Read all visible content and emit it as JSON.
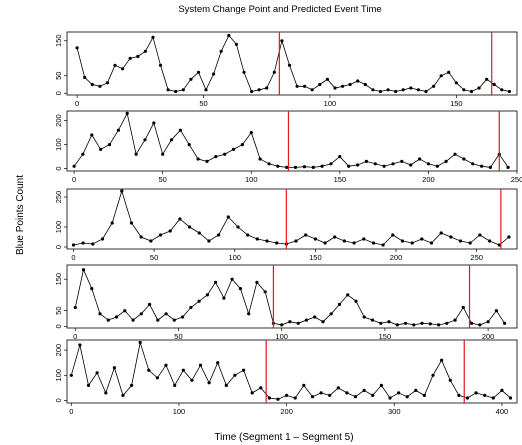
{
  "figure": {
    "title": "System Change Point and Predicted Event Time",
    "xlabel": "Time (Segment 1 – Segment 5)",
    "ylabel": "Blue Points Count"
  },
  "colors": {
    "points": "#000000",
    "line": "#000000",
    "changepoint": "#e31a1c",
    "frame": "#000000"
  },
  "chart_data": [
    {
      "type": "line",
      "segment": 1,
      "xlim": [
        -4,
        174
      ],
      "ylim": [
        -5,
        175
      ],
      "xticks": [
        0,
        50,
        100,
        150
      ],
      "yticks": [
        0,
        50,
        150
      ],
      "change_points": [
        80,
        164
      ],
      "series": [
        {
          "x": [
            0,
            3,
            6,
            9,
            12,
            15,
            18,
            21,
            24,
            27,
            30,
            33,
            36,
            39,
            42,
            45,
            48,
            51,
            54,
            57,
            60,
            63,
            66,
            69,
            72,
            75,
            78,
            81,
            84,
            87,
            90,
            93,
            96,
            99,
            102,
            105,
            108,
            111,
            114,
            117,
            120,
            123,
            126,
            129,
            132,
            135,
            138,
            141,
            144,
            147,
            150,
            153,
            156,
            159,
            162,
            165,
            168,
            171
          ],
          "y": [
            130,
            45,
            25,
            20,
            30,
            80,
            70,
            100,
            105,
            120,
            160,
            80,
            10,
            5,
            10,
            40,
            60,
            10,
            55,
            120,
            165,
            140,
            60,
            5,
            10,
            15,
            60,
            150,
            80,
            20,
            20,
            10,
            25,
            40,
            15,
            20,
            25,
            35,
            25,
            10,
            5,
            10,
            5,
            10,
            15,
            10,
            5,
            20,
            50,
            60,
            30,
            10,
            5,
            15,
            40,
            25,
            10,
            5
          ]
        }
      ]
    },
    {
      "type": "line",
      "segment": 2,
      "xlim": [
        -4,
        250
      ],
      "ylim": [
        -10,
        240
      ],
      "xticks": [
        0,
        50,
        100,
        150,
        200,
        250
      ],
      "yticks": [
        0,
        100,
        200
      ],
      "change_points": [
        121,
        240
      ],
      "series": [
        {
          "x": [
            0,
            5,
            10,
            15,
            20,
            25,
            30,
            35,
            40,
            45,
            50,
            55,
            60,
            65,
            70,
            75,
            80,
            85,
            90,
            95,
            100,
            105,
            110,
            115,
            120,
            125,
            130,
            135,
            140,
            145,
            150,
            155,
            160,
            165,
            170,
            175,
            180,
            185,
            190,
            195,
            200,
            205,
            210,
            215,
            220,
            225,
            230,
            235,
            240,
            245
          ],
          "y": [
            10,
            60,
            140,
            80,
            100,
            160,
            230,
            60,
            120,
            190,
            60,
            120,
            160,
            100,
            40,
            30,
            50,
            60,
            80,
            100,
            150,
            40,
            20,
            10,
            5,
            5,
            8,
            5,
            10,
            20,
            50,
            10,
            15,
            30,
            20,
            10,
            20,
            30,
            15,
            40,
            20,
            10,
            30,
            60,
            40,
            20,
            10,
            5,
            60,
            5
          ]
        }
      ]
    },
    {
      "type": "line",
      "segment": 3,
      "xlim": [
        -4,
        275
      ],
      "ylim": [
        -10,
        290
      ],
      "xticks": [
        0,
        50,
        100,
        150,
        200,
        250
      ],
      "yticks": [
        0,
        100,
        250
      ],
      "change_points": [
        132,
        265
      ],
      "series": [
        {
          "x": [
            0,
            6,
            12,
            18,
            24,
            30,
            36,
            42,
            48,
            54,
            60,
            66,
            72,
            78,
            84,
            90,
            96,
            102,
            108,
            114,
            120,
            126,
            132,
            138,
            144,
            150,
            156,
            162,
            168,
            174,
            180,
            186,
            192,
            198,
            204,
            210,
            216,
            222,
            228,
            234,
            240,
            246,
            252,
            258,
            264,
            270
          ],
          "y": [
            10,
            20,
            15,
            40,
            120,
            280,
            120,
            50,
            30,
            60,
            80,
            140,
            100,
            70,
            30,
            60,
            150,
            100,
            60,
            40,
            30,
            20,
            15,
            30,
            60,
            40,
            20,
            50,
            30,
            20,
            40,
            20,
            10,
            60,
            30,
            20,
            40,
            20,
            70,
            50,
            30,
            20,
            60,
            30,
            10,
            50
          ]
        }
      ]
    },
    {
      "type": "line",
      "segment": 4,
      "xlim": [
        -4,
        214
      ],
      "ylim": [
        -5,
        195
      ],
      "xticks": [
        0,
        50,
        100,
        150,
        200
      ],
      "yticks": [
        0,
        50,
        150
      ],
      "change_points": [
        96,
        191
      ],
      "series": [
        {
          "x": [
            0,
            4,
            8,
            12,
            16,
            20,
            24,
            28,
            32,
            36,
            40,
            44,
            48,
            52,
            56,
            60,
            64,
            68,
            72,
            76,
            80,
            84,
            88,
            92,
            96,
            100,
            104,
            108,
            112,
            116,
            120,
            124,
            128,
            132,
            136,
            140,
            144,
            148,
            152,
            156,
            160,
            164,
            168,
            172,
            176,
            180,
            184,
            188,
            192,
            196,
            200,
            204,
            208
          ],
          "y": [
            60,
            180,
            120,
            40,
            20,
            30,
            50,
            20,
            40,
            70,
            20,
            40,
            20,
            30,
            60,
            80,
            100,
            140,
            90,
            150,
            120,
            40,
            140,
            110,
            10,
            5,
            15,
            10,
            20,
            30,
            15,
            40,
            70,
            100,
            80,
            30,
            20,
            10,
            15,
            5,
            10,
            5,
            10,
            8,
            5,
            10,
            20,
            60,
            10,
            5,
            15,
            50,
            10
          ]
        }
      ]
    },
    {
      "type": "line",
      "segment": 5,
      "xlim": [
        -4,
        414
      ],
      "ylim": [
        -10,
        240
      ],
      "xticks": [
        0,
        100,
        200,
        300,
        400
      ],
      "yticks": [
        0,
        100,
        200
      ],
      "change_points": [
        181,
        365
      ],
      "series": [
        {
          "x": [
            0,
            8,
            16,
            24,
            32,
            40,
            48,
            56,
            64,
            72,
            80,
            88,
            96,
            104,
            112,
            120,
            128,
            136,
            144,
            152,
            160,
            168,
            176,
            184,
            192,
            200,
            208,
            216,
            224,
            232,
            240,
            248,
            256,
            264,
            272,
            280,
            288,
            296,
            304,
            312,
            320,
            328,
            336,
            344,
            352,
            360,
            368,
            376,
            384,
            392,
            400,
            408
          ],
          "y": [
            100,
            220,
            60,
            110,
            30,
            130,
            20,
            60,
            230,
            120,
            90,
            140,
            60,
            120,
            80,
            140,
            70,
            150,
            60,
            100,
            120,
            30,
            50,
            10,
            5,
            20,
            10,
            60,
            15,
            30,
            20,
            50,
            30,
            15,
            40,
            20,
            60,
            10,
            30,
            15,
            40,
            20,
            100,
            160,
            80,
            20,
            10,
            30,
            20,
            10,
            40,
            10
          ]
        }
      ]
    }
  ]
}
